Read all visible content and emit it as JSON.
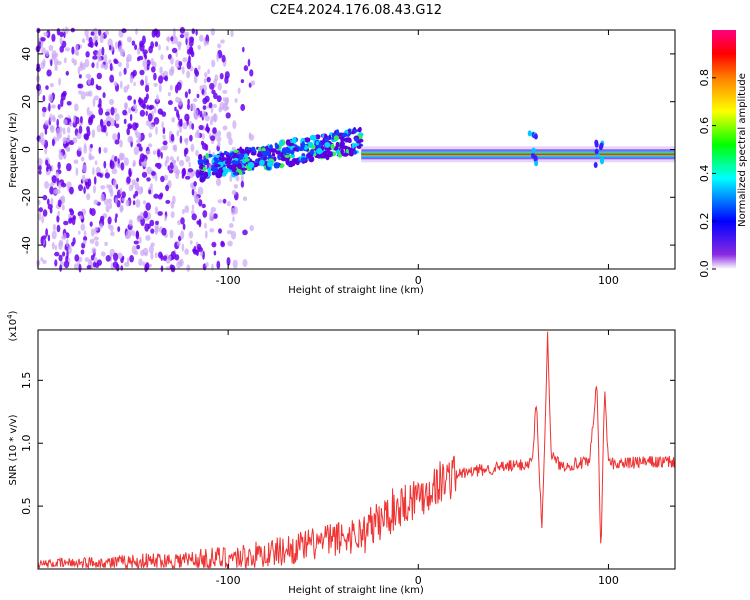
{
  "title": "C2E4.2024.176.08.43.G12",
  "chart_data": [
    {
      "type": "heatmap",
      "xlabel": "Height of straight line (km)",
      "ylabel": "Frequency (Hz)",
      "xlim": [
        -200,
        135
      ],
      "ylim": [
        -50,
        50
      ],
      "xticks": [
        -100,
        0,
        100
      ],
      "yticks": [
        -40,
        -20,
        0,
        20,
        40
      ],
      "description_bands": [
        {
          "x_from": -200,
          "x_to": -115,
          "kind": "broadband noise"
        },
        {
          "x_from": -115,
          "x_to": -30,
          "kind": "emerging signal"
        },
        {
          "x_from": -30,
          "x_to": 135,
          "kind": "narrow carrier near 0 Hz"
        }
      ],
      "colorbar": {
        "label": "Normalized spectral amplitude",
        "range": [
          0.0,
          1.0
        ],
        "ticks": [
          "0.0",
          "0.2",
          "0.4",
          "0.6",
          "0.8"
        ],
        "colormap": [
          "#ffffff",
          "#7a00ff",
          "#0000ff",
          "#00ffff",
          "#00ff00",
          "#ffff00",
          "#ff8000",
          "#ff0000",
          "#ff0080"
        ]
      }
    },
    {
      "type": "line",
      "xlabel": "Height of straight line (km)",
      "ylabel": "SNR (10 * v/v)",
      "yexponent": "(x10",
      "yexponent_power": "4",
      "yexponent_close": ")",
      "xlim": [
        -200,
        135
      ],
      "ylim": [
        0,
        1.9
      ],
      "xticks": [
        -100,
        0,
        100
      ],
      "yticks": [
        "0.5",
        "1.0",
        "1.5"
      ],
      "series": [
        {
          "color": "#ee3333",
          "x": [
            -200,
            -180,
            -160,
            -140,
            -120,
            -100,
            -90,
            -80,
            -70,
            -60,
            -50,
            -40,
            -30,
            -25,
            -20,
            -15,
            -10,
            -5,
            0,
            5,
            10,
            15,
            20,
            30,
            40,
            50,
            55,
            60,
            62,
            65,
            68,
            70,
            75,
            80,
            85,
            90,
            94,
            96,
            98,
            100,
            110,
            120,
            135
          ],
          "y": [
            0.04,
            0.05,
            0.05,
            0.06,
            0.07,
            0.09,
            0.1,
            0.12,
            0.15,
            0.18,
            0.22,
            0.25,
            0.28,
            0.33,
            0.38,
            0.45,
            0.5,
            0.55,
            0.58,
            0.62,
            0.68,
            0.72,
            0.75,
            0.78,
            0.8,
            0.82,
            0.83,
            0.85,
            1.35,
            0.3,
            1.85,
            0.9,
            0.82,
            0.83,
            0.84,
            0.84,
            1.5,
            0.1,
            1.45,
            0.84,
            0.84,
            0.85,
            0.85
          ]
        }
      ]
    }
  ]
}
